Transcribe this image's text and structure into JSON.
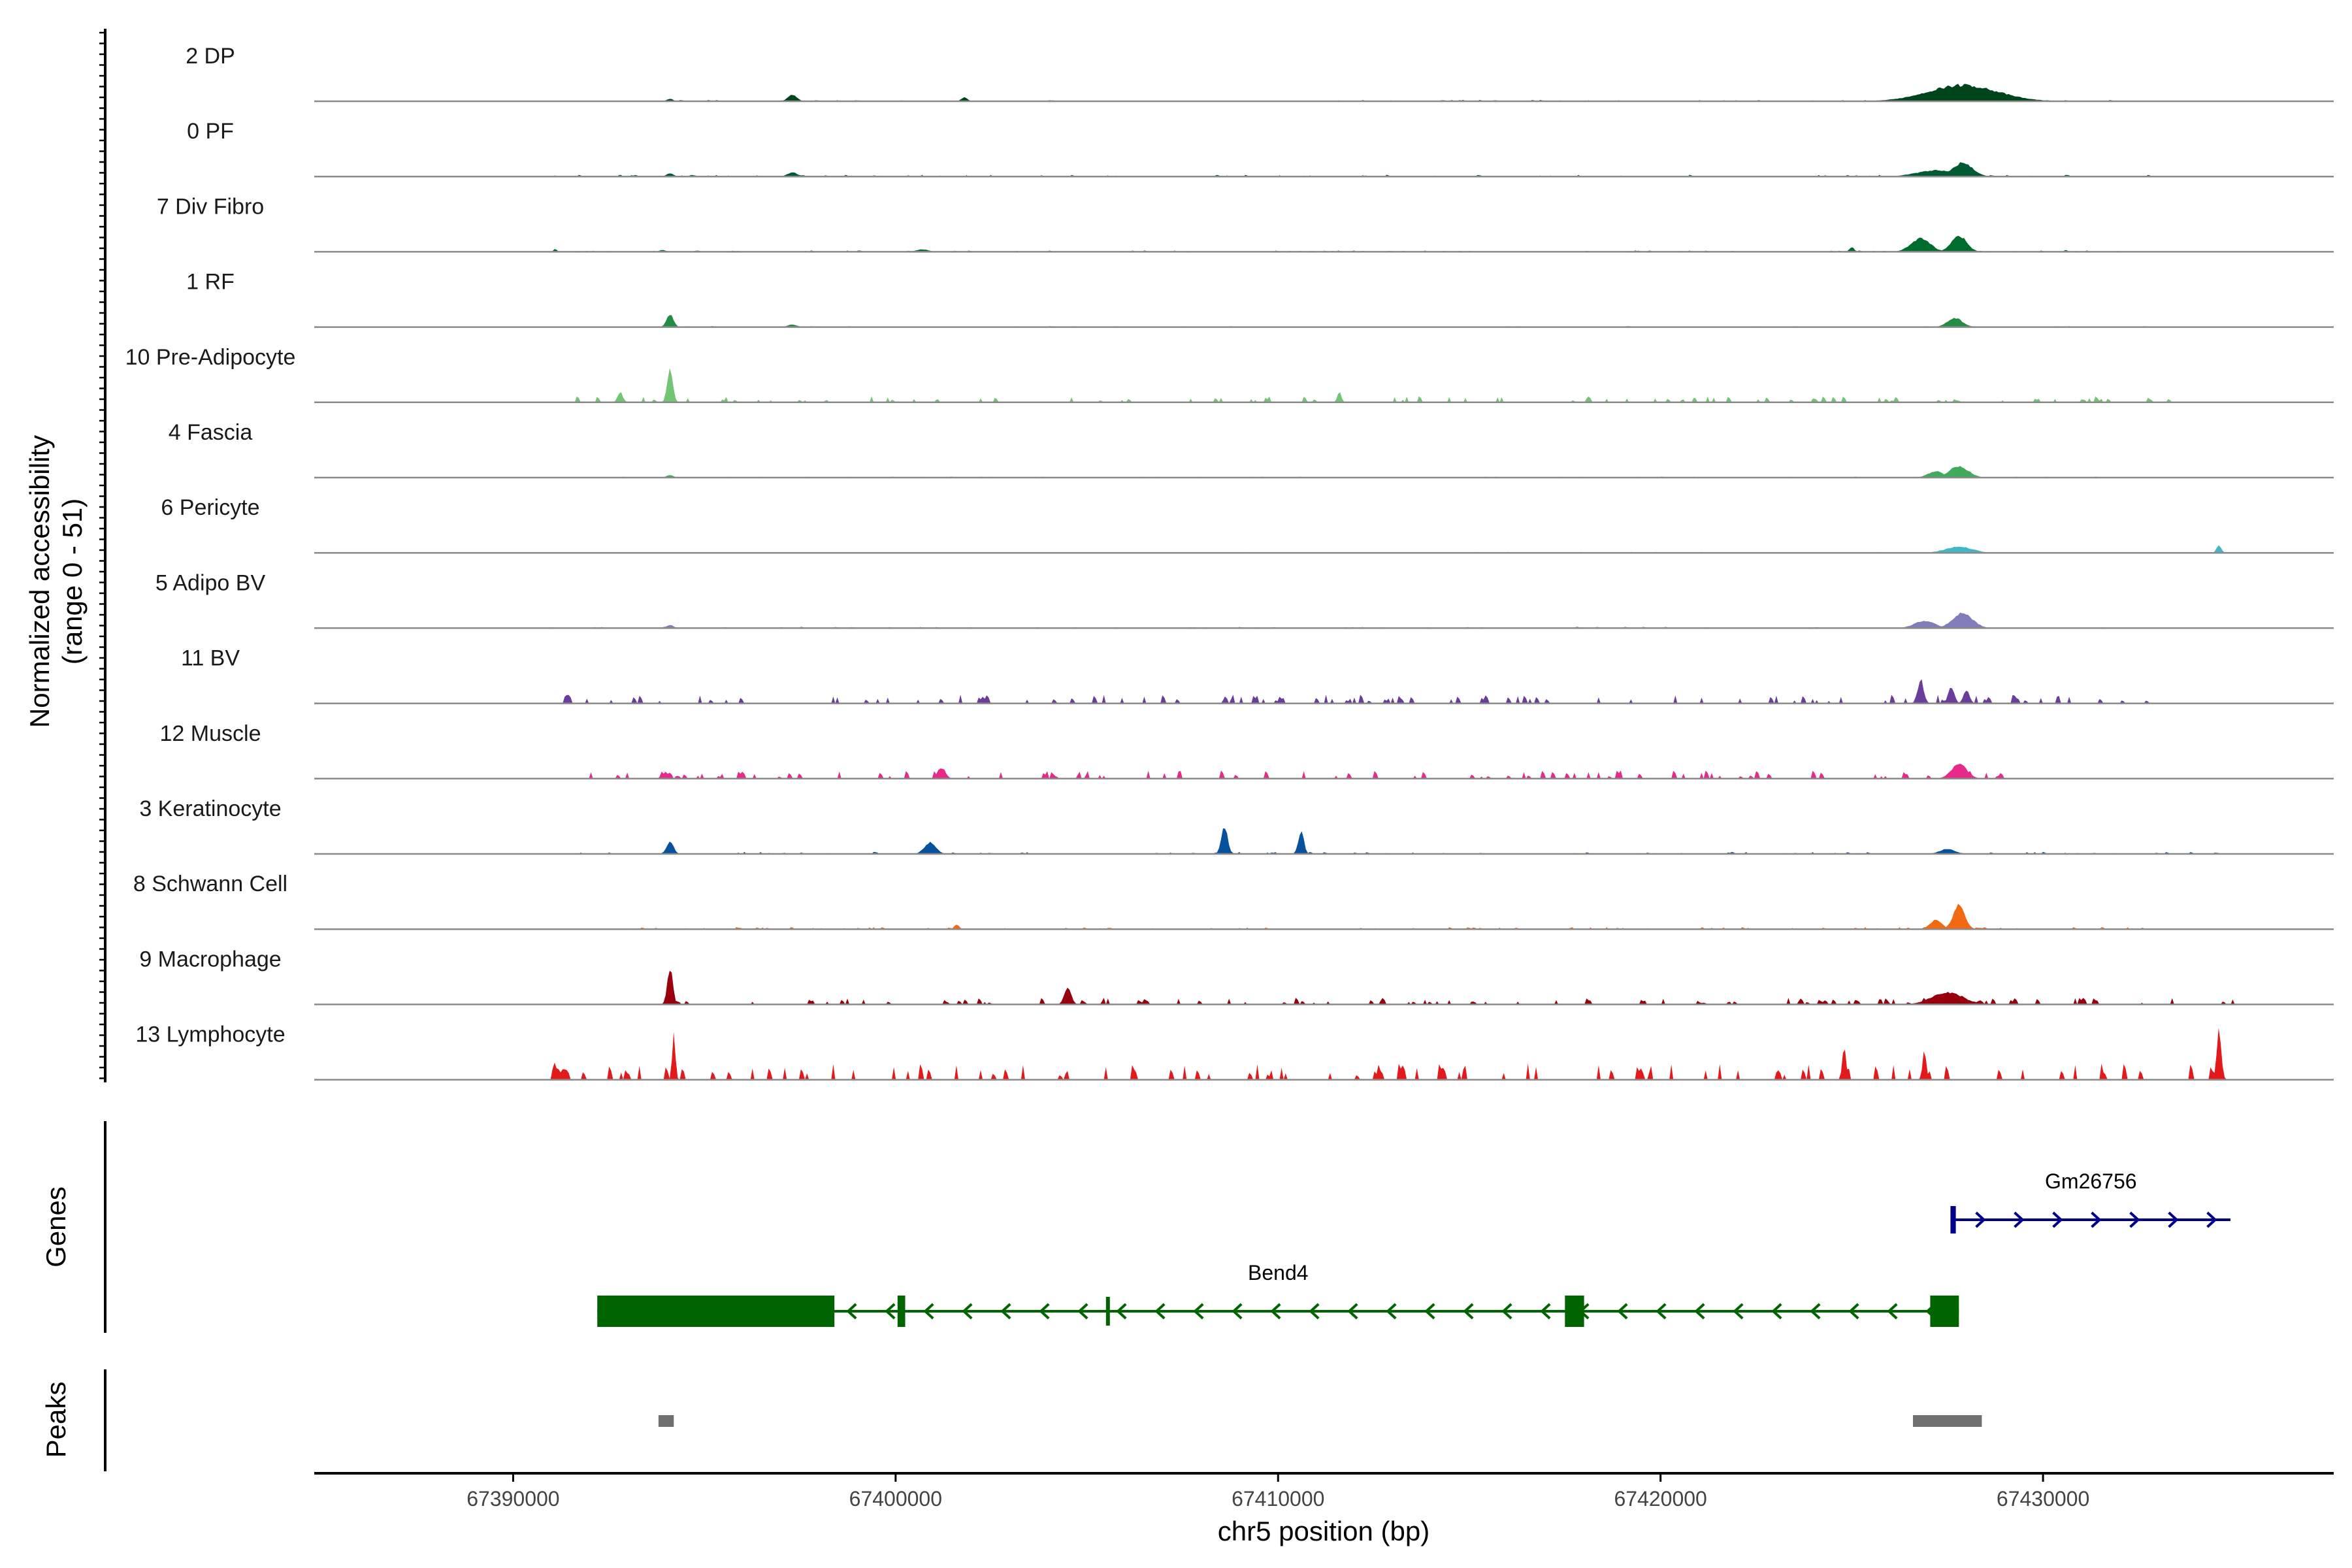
{
  "chart_data": {
    "type": "coverage-track",
    "region": {
      "chrom": "chr5",
      "start": 67384800,
      "end": 67437600
    },
    "xlabel": "chr5 position (bp)",
    "xticks": [
      67390000,
      67400000,
      67410000,
      67420000,
      67430000
    ],
    "xtick_labels": [
      "67390000",
      "67400000",
      "67410000",
      "67420000",
      "67430000"
    ],
    "coverage": {
      "ylabel_line1": "Normalized accessibility",
      "ylabel_line2": "(range 0 - 51)",
      "range": [
        0,
        51
      ],
      "tracks": [
        {
          "name": "2 DP",
          "color": "#00441b",
          "peaks": [
            [
              67394100,
              0.04,
              80
            ],
            [
              67397300,
              0.1,
              120
            ],
            [
              67401800,
              0.06,
              80
            ],
            [
              67427900,
              0.26,
              900
            ]
          ],
          "noise": [
            [
              67394000,
              67405000,
              0.02
            ],
            [
              67410000,
              67432000,
              0.02
            ]
          ]
        },
        {
          "name": "0 PF",
          "color": "#005a32",
          "peaks": [
            [
              67394100,
              0.05,
              90
            ],
            [
              67397300,
              0.07,
              120
            ],
            [
              67427900,
              0.22,
              260
            ],
            [
              67427200,
              0.1,
              500
            ]
          ],
          "noise": [
            [
              67391000,
              67433000,
              0.025
            ]
          ]
        },
        {
          "name": "7 Div Fibro",
          "color": "#006d2c",
          "peaks": [
            [
              67391100,
              0.05,
              40
            ],
            [
              67393900,
              0.03,
              80
            ],
            [
              67400700,
              0.04,
              160
            ],
            [
              67426800,
              0.22,
              250
            ],
            [
              67427800,
              0.26,
              200
            ],
            [
              67425000,
              0.08,
              60
            ],
            [
              67430600,
              0.03,
              40
            ]
          ],
          "noise": [
            [
              67391000,
              67432000,
              0.02
            ]
          ]
        },
        {
          "name": "1 RF",
          "color": "#238b45",
          "peaks": [
            [
              67394100,
              0.2,
              90
            ],
            [
              67397300,
              0.04,
              120
            ],
            [
              67427700,
              0.14,
              200
            ]
          ],
          "noise": [
            [
              67394000,
              67433000,
              0.015
            ]
          ]
        },
        {
          "name": "10 Pre-Adipocyte",
          "color": "#74c476",
          "peaks": [
            [
              67394100,
              0.55,
              70
            ],
            [
              67392800,
              0.16,
              70
            ],
            [
              67411600,
              0.18,
              50
            ]
          ],
          "noise": [
            [
              67391000,
              67434000,
              0.09
            ]
          ]
        },
        {
          "name": "4 Fascia",
          "color": "#41ab5d",
          "peaks": [
            [
              67394100,
              0.04,
              90
            ],
            [
              67427800,
              0.18,
              250
            ],
            [
              67427200,
              0.1,
              200
            ]
          ],
          "noise": [
            [
              67391000,
              67433000,
              0.015
            ]
          ]
        },
        {
          "name": "6 Pericyte",
          "color": "#41b6c4",
          "peaks": [
            [
              67427800,
              0.1,
              350
            ],
            [
              67434600,
              0.12,
              60
            ]
          ],
          "noise": [
            [
              67394000,
              67433000,
              0.015
            ]
          ]
        },
        {
          "name": "5 Adipo BV",
          "color": "#807dba",
          "peaks": [
            [
              67394100,
              0.05,
              90
            ],
            [
              67427900,
              0.24,
              260
            ],
            [
              67426900,
              0.12,
              260
            ]
          ],
          "noise": [
            [
              67391000,
              67433000,
              0.02
            ]
          ]
        },
        {
          "name": "11 BV",
          "color": "#6a3d9a",
          "peaks": [
            [
              67426800,
              0.38,
              80
            ],
            [
              67427600,
              0.25,
              80
            ],
            [
              67428000,
              0.2,
              80
            ]
          ],
          "noise": [
            [
              67391000,
              67433000,
              0.13
            ]
          ]
        },
        {
          "name": "12 Muscle",
          "color": "#e7298a",
          "peaks": [
            [
              67427800,
              0.24,
              200
            ],
            [
              67401200,
              0.18,
              100
            ]
          ],
          "noise": [
            [
              67392000,
              67430000,
              0.12
            ]
          ]
        },
        {
          "name": "3 Keratinocyte",
          "color": "#08519c",
          "peaks": [
            [
              67394100,
              0.2,
              90
            ],
            [
              67400900,
              0.18,
              150
            ],
            [
              67408600,
              0.45,
              80
            ],
            [
              67410600,
              0.38,
              70
            ],
            [
              67427500,
              0.08,
              200
            ]
          ],
          "noise": [
            [
              67391000,
              67435000,
              0.03
            ]
          ]
        },
        {
          "name": "8 Schwann Cell",
          "color": "#f16913",
          "peaks": [
            [
              67427800,
              0.38,
              150
            ],
            [
              67427200,
              0.15,
              150
            ],
            [
              67401600,
              0.08,
              60
            ]
          ],
          "noise": [
            [
              67393000,
              67433000,
              0.03
            ]
          ]
        },
        {
          "name": "9 Macrophage",
          "color": "#99000d",
          "peaks": [
            [
              67394100,
              0.6,
              70
            ],
            [
              67404500,
              0.28,
              90
            ],
            [
              67427500,
              0.2,
              400
            ]
          ],
          "noise": [
            [
              67394000,
              67435000,
              0.1
            ]
          ]
        },
        {
          "name": "13 Lymphocyte",
          "color": "#e31a1c",
          "peaks": [
            [
              67391100,
              0.28,
              40
            ],
            [
              67394200,
              0.75,
              40
            ],
            [
              67424800,
              0.5,
              50
            ],
            [
              67434600,
              0.78,
              60
            ],
            [
              67426900,
              0.45,
              50
            ],
            [
              67419500,
              0.18,
              40
            ]
          ],
          "noise": [
            [
              67391000,
              67435000,
              0.24
            ]
          ]
        }
      ]
    },
    "genes": {
      "ylabel": "Genes",
      "items": [
        {
          "name": "Bend4",
          "strand": "-",
          "color": "#006400",
          "start": 67392200,
          "end": 67427800,
          "exons": [
            [
              67392200,
              67398400
            ],
            [
              67400050,
              67400250
            ],
            [
              67405500,
              67405560
            ],
            [
              67417500,
              67418000
            ],
            [
              67427050,
              67427800
            ]
          ]
        },
        {
          "name": "Gm26756",
          "strand": "+",
          "color": "#00008b",
          "start": 67427600,
          "end": 67434900,
          "exons": [
            [
              67427580,
              67427720
            ]
          ]
        }
      ]
    },
    "peaks": {
      "ylabel": "Peaks",
      "color": "#707070",
      "regions": [
        [
          67393800,
          67394200
        ],
        [
          67426600,
          67428400
        ]
      ]
    }
  }
}
